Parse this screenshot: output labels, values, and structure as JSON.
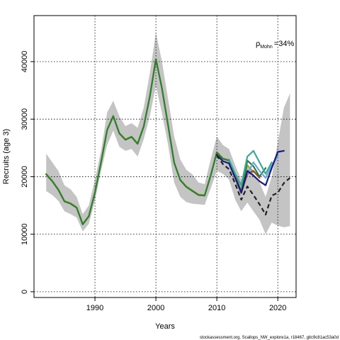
{
  "chart_data": {
    "type": "line",
    "xlabel": "Years",
    "ylabel": "Recruits (age 3)",
    "xlim": [
      1980,
      2023
    ],
    "ylim": [
      -1000,
      48000
    ],
    "x_ticks": [
      1990,
      2000,
      2010,
      2020
    ],
    "y_ticks": [
      0,
      10000,
      20000,
      30000,
      40000
    ],
    "x_tick_labels": [
      "1990",
      "2000",
      "2010",
      "2020"
    ],
    "y_tick_labels": [
      "0",
      "10000",
      "20000",
      "30000",
      "40000"
    ],
    "grid": true,
    "annotation": {
      "symbol": "ρ",
      "subscript": "Mohn",
      "value": "=34%"
    },
    "footer": "stockassessment.org, Scallops_NW_explore1a, r18467, gitc9c81ac53a0d",
    "band": {
      "x": [
        1982,
        1983,
        1984,
        1985,
        1986,
        1987,
        1988,
        1989,
        1990,
        1991,
        1992,
        1993,
        1994,
        1995,
        1996,
        1997,
        1998,
        1999,
        2000,
        2001,
        2002,
        2003,
        2004,
        2005,
        2006,
        2007,
        2008,
        2009,
        2010,
        2011,
        2012,
        2013,
        2014,
        2015,
        2016,
        2017,
        2018,
        2019,
        2020,
        2021,
        2022
      ],
      "lower": [
        17500,
        16800,
        15800,
        14000,
        13500,
        12900,
        10500,
        11800,
        15800,
        21000,
        25500,
        28000,
        25200,
        24500,
        24800,
        23500,
        26500,
        30500,
        35800,
        31000,
        25500,
        19000,
        16500,
        15600,
        15300,
        15200,
        15100,
        18000,
        21000,
        20500,
        19500,
        16000,
        14000,
        15500,
        14000,
        12500,
        10000,
        12000,
        11500,
        11200,
        11400
      ],
      "upper": [
        24000,
        22500,
        21000,
        18500,
        17800,
        16500,
        13500,
        15000,
        19500,
        24500,
        31200,
        33200,
        30500,
        28800,
        29300,
        28500,
        32000,
        38000,
        45000,
        40000,
        33500,
        27000,
        23000,
        21200,
        20400,
        19000,
        18700,
        23000,
        27000,
        25500,
        24800,
        22000,
        19500,
        22000,
        20500,
        19000,
        16500,
        20000,
        26000,
        32000,
        34500
      ]
    },
    "series": [
      {
        "color": "#9aa83c",
        "x": [
          1982,
          1983,
          1984,
          1985,
          1986,
          1987,
          1988,
          1989,
          1990,
          1991,
          1992,
          1993,
          1994,
          1995,
          1996,
          1997,
          1998,
          1999,
          2000,
          2001,
          2002,
          2003,
          2004,
          2005,
          2006,
          2007,
          2008,
          2009,
          2010,
          2011,
          2012,
          2013,
          2014,
          2015,
          2016
        ],
        "values": [
          20500,
          19300,
          17800,
          15800,
          15400,
          14700,
          11800,
          13200,
          17300,
          22600,
          28200,
          30600,
          27600,
          26500,
          27000,
          25800,
          28800,
          34000,
          40500,
          35400,
          29000,
          22500,
          19500,
          18300,
          17600,
          16900,
          16800,
          20300,
          24300,
          23200,
          22900,
          20200,
          17500,
          22000,
          20800
        ]
      },
      {
        "color": "#2e7d32",
        "x": [
          1982,
          1983,
          1984,
          1985,
          1986,
          1987,
          1988,
          1989,
          1990,
          1991,
          1992,
          1993,
          1994,
          1995,
          1996,
          1997,
          1998,
          1999,
          2000,
          2001,
          2002,
          2003,
          2004,
          2005,
          2006,
          2007,
          2008,
          2009,
          2010,
          2011,
          2012,
          2013,
          2014,
          2015,
          2016,
          2017,
          2018
        ],
        "values": [
          20400,
          19200,
          17700,
          15700,
          15300,
          14600,
          11700,
          13100,
          17200,
          22500,
          28100,
          30500,
          27500,
          26400,
          26900,
          25700,
          28700,
          33900,
          40400,
          35300,
          28900,
          22400,
          19400,
          18200,
          17500,
          16800,
          16700,
          20200,
          24200,
          23100,
          22800,
          20100,
          17400,
          22800,
          21800,
          20000,
          21500
        ]
      },
      {
        "color": "#8b4a2b",
        "x": [
          2013,
          2014,
          2015,
          2016,
          2017
        ],
        "values": [
          20000,
          17200,
          20500,
          21000,
          19800
        ]
      },
      {
        "color": "#3aa89a",
        "x": [
          2012,
          2013,
          2014,
          2015,
          2016,
          2017,
          2018,
          2019
        ],
        "values": [
          23000,
          20500,
          18500,
          23500,
          24500,
          22500,
          20500,
          22500
        ]
      },
      {
        "color": "#6aa8e0",
        "x": [
          2015,
          2016,
          2017,
          2018,
          2019,
          2020
        ],
        "values": [
          20500,
          22500,
          21000,
          19800,
          22000,
          23500
        ]
      },
      {
        "color": "#1a1a80",
        "x": [
          2010,
          2011,
          2012,
          2013,
          2014,
          2015,
          2016,
          2017,
          2018,
          2019,
          2020,
          2021
        ],
        "values": [
          23800,
          22700,
          22300,
          19800,
          17200,
          21000,
          20200,
          19200,
          18500,
          21500,
          24300,
          24500
        ]
      },
      {
        "color": "#222222",
        "dashed": true,
        "x": [
          2010,
          2011,
          2012,
          2013,
          2014,
          2015,
          2016,
          2017,
          2018,
          2019,
          2020,
          2021,
          2022
        ],
        "values": [
          23700,
          22200,
          21300,
          18800,
          16000,
          18300,
          16800,
          15200,
          13400,
          16700,
          17200,
          18900,
          19800
        ]
      }
    ]
  }
}
